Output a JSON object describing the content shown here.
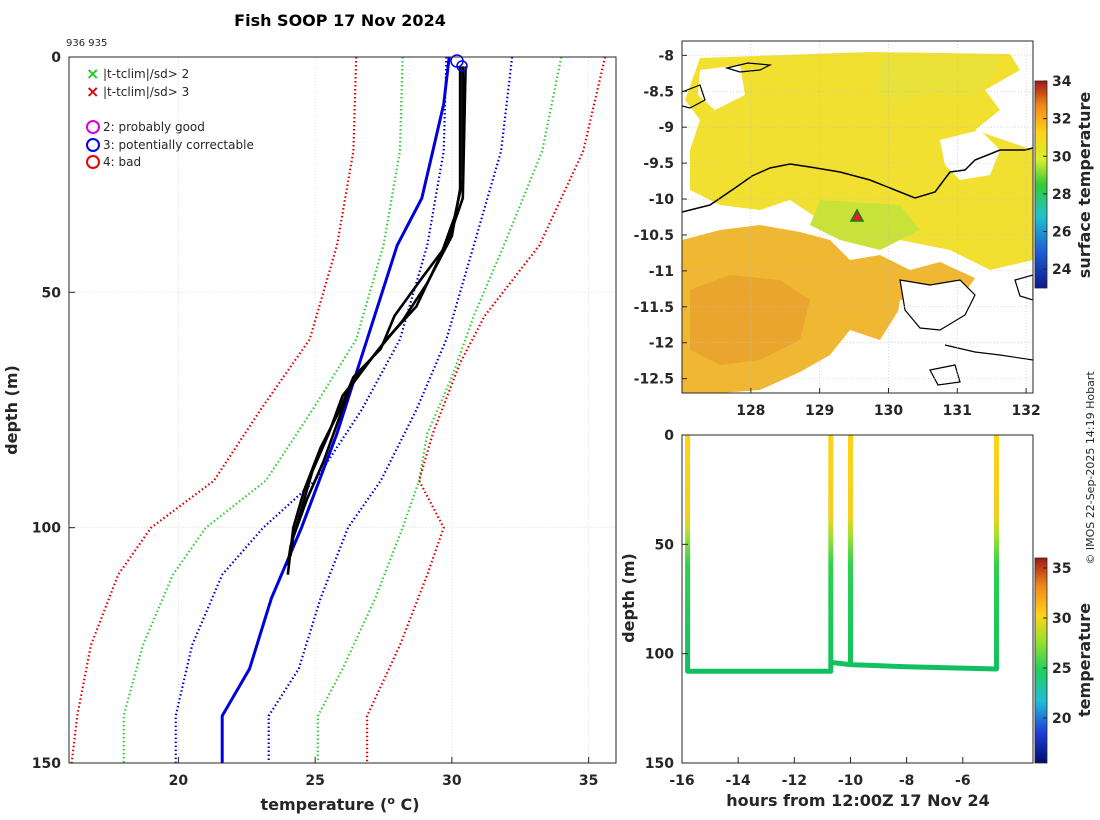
{
  "figure": {
    "title": "Fish SOOP 17 Nov 2024",
    "ids": "936 935",
    "footer": "© IMOS 22-Sep-2025 14:19 Hobart"
  },
  "legend": {
    "items": [
      {
        "symbol": "×",
        "color": "#22cc22",
        "label": "|t-tclim|/sd> 2"
      },
      {
        "symbol": "×",
        "color": "#dd0000",
        "label": "|t-tclim|/sd> 3"
      },
      {
        "symbol": "○",
        "color": "#dd00dd",
        "label": "2: probably good"
      },
      {
        "symbol": "○",
        "color": "#0000ee",
        "label": "3: potentially correctable"
      },
      {
        "symbol": "○",
        "color": "#ee0000",
        "label": "4: bad"
      }
    ]
  },
  "chart_data": [
    {
      "type": "line",
      "panel": "profile",
      "xlabel": "temperature (o C)",
      "ylabel": "depth (m)",
      "xlim": [
        16,
        36
      ],
      "ylim": [
        150,
        0
      ],
      "xticks": [
        20,
        25,
        30,
        35
      ],
      "yticks": [
        0,
        50,
        100,
        150
      ],
      "series": [
        {
          "name": "clim-3sd-low",
          "color": "#dd0000",
          "style": "dotted",
          "points": [
            [
              26.5,
              0
            ],
            [
              26.4,
              20
            ],
            [
              25.8,
              40
            ],
            [
              24.8,
              60
            ],
            [
              23.0,
              75
            ],
            [
              21.3,
              90
            ],
            [
              19.0,
              100
            ],
            [
              17.8,
              110
            ],
            [
              16.8,
              125
            ],
            [
              16.3,
              140
            ],
            [
              16.1,
              150
            ]
          ]
        },
        {
          "name": "clim-2sd-low",
          "color": "#33cc33",
          "style": "dotted",
          "points": [
            [
              28.2,
              0
            ],
            [
              28.1,
              20
            ],
            [
              27.5,
              40
            ],
            [
              26.5,
              60
            ],
            [
              24.9,
              75
            ],
            [
              23.2,
              90
            ],
            [
              21.0,
              100
            ],
            [
              19.8,
              110
            ],
            [
              18.7,
              125
            ],
            [
              18.0,
              140
            ],
            [
              18.0,
              150
            ]
          ]
        },
        {
          "name": "clim-1sd-low",
          "color": "#0000cc",
          "style": "dotted",
          "points": [
            [
              29.8,
              0
            ],
            [
              29.7,
              20
            ],
            [
              29.1,
              40
            ],
            [
              28.1,
              60
            ],
            [
              26.7,
              75
            ],
            [
              25.0,
              90
            ],
            [
              23.1,
              100
            ],
            [
              21.6,
              110
            ],
            [
              20.5,
              125
            ],
            [
              19.9,
              140
            ],
            [
              19.9,
              150
            ]
          ]
        },
        {
          "name": "climatology-mean",
          "color": "#0000dd",
          "style": "solid",
          "points": [
            [
              29.9,
              0
            ],
            [
              29.7,
              10
            ],
            [
              29.3,
              20
            ],
            [
              28.9,
              30
            ],
            [
              28.0,
              40
            ],
            [
              26.9,
              60
            ],
            [
              25.8,
              80
            ],
            [
              24.5,
              100
            ],
            [
              23.4,
              115
            ],
            [
              22.6,
              130
            ],
            [
              21.6,
              140
            ],
            [
              21.6,
              150
            ]
          ]
        },
        {
          "name": "clim-1sd-high",
          "color": "#0000cc",
          "style": "dotted",
          "points": [
            [
              32.2,
              0
            ],
            [
              31.8,
              20
            ],
            [
              30.8,
              40
            ],
            [
              29.8,
              60
            ],
            [
              28.7,
              75
            ],
            [
              27.4,
              90
            ],
            [
              26.2,
              100
            ],
            [
              25.2,
              115
            ],
            [
              24.4,
              130
            ],
            [
              23.3,
              140
            ],
            [
              23.3,
              150
            ]
          ]
        },
        {
          "name": "clim-2sd-high",
          "color": "#33cc33",
          "style": "dotted",
          "points": [
            [
              34.0,
              0
            ],
            [
              33.3,
              20
            ],
            [
              31.9,
              40
            ],
            [
              30.8,
              55
            ],
            [
              30.0,
              68
            ],
            [
              29.1,
              80
            ],
            [
              28.8,
              90
            ],
            [
              28.2,
              100
            ],
            [
              27.2,
              115
            ],
            [
              26.0,
              130
            ],
            [
              25.1,
              140
            ],
            [
              25.1,
              150
            ]
          ]
        },
        {
          "name": "clim-3sd-high",
          "color": "#dd0000",
          "style": "dotted",
          "points": [
            [
              35.6,
              0
            ],
            [
              34.8,
              20
            ],
            [
              33.2,
              40
            ],
            [
              31.2,
              55
            ],
            [
              30.3,
              65
            ],
            [
              29.3,
              80
            ],
            [
              28.8,
              90
            ],
            [
              29.7,
              100
            ],
            [
              29.1,
              110
            ],
            [
              28.1,
              125
            ],
            [
              26.9,
              140
            ],
            [
              26.9,
              150
            ]
          ]
        },
        {
          "name": "profile-1",
          "color": "#000000",
          "style": "solid",
          "points": [
            [
              30.4,
              2
            ],
            [
              30.4,
              26
            ],
            [
              30.1,
              34
            ],
            [
              29.6,
              42
            ],
            [
              28.7,
              53
            ],
            [
              27.6,
              60
            ],
            [
              26.8,
              66
            ],
            [
              26.0,
              72
            ],
            [
              25.5,
              80
            ],
            [
              24.9,
              88
            ],
            [
              24.5,
              96
            ],
            [
              24.1,
              104
            ],
            [
              24.0,
              108
            ]
          ]
        },
        {
          "name": "profile-2",
          "color": "#000000",
          "style": "solid",
          "points": [
            [
              30.3,
              2
            ],
            [
              30.3,
              28
            ],
            [
              30.0,
              38
            ],
            [
              29.1,
              48
            ],
            [
              28.2,
              56
            ],
            [
              27.2,
              63
            ],
            [
              26.3,
              70
            ],
            [
              25.8,
              78
            ],
            [
              25.3,
              86
            ],
            [
              24.7,
              94
            ],
            [
              24.2,
              102
            ],
            [
              24.1,
              106
            ]
          ]
        },
        {
          "name": "profile-3",
          "color": "#000000",
          "style": "solid",
          "points": [
            [
              30.5,
              2
            ],
            [
              30.4,
              30
            ],
            [
              29.8,
              40
            ],
            [
              28.9,
              47
            ],
            [
              27.9,
              55
            ],
            [
              27.4,
              62
            ],
            [
              26.4,
              68
            ],
            [
              25.9,
              75
            ],
            [
              25.2,
              83
            ],
            [
              24.6,
              92
            ],
            [
              24.2,
              100
            ],
            [
              24.0,
              110
            ]
          ]
        }
      ]
    },
    {
      "type": "heatmap",
      "panel": "map",
      "xlim": [
        127,
        132.1
      ],
      "ylim": [
        -12.7,
        -7.8
      ],
      "xticks": [
        128,
        129,
        130,
        131,
        132
      ],
      "yticks": [
        -8,
        -8.5,
        -9,
        -9.5,
        -10,
        -10.5,
        -11,
        -11.5,
        -12,
        -12.5
      ],
      "colorbar": {
        "label": "surface temperature",
        "range": [
          23,
          34
        ],
        "ticks": [
          24,
          26,
          28,
          30,
          32,
          34
        ]
      },
      "marker": {
        "lon": 129.55,
        "lat": -10.3
      }
    },
    {
      "type": "scatter",
      "panel": "timeseries",
      "xlabel": "hours from 12:00Z 17 Nov 24",
      "ylabel": "depth (m)",
      "xlim": [
        -16,
        -3.5
      ],
      "ylim": [
        150,
        0
      ],
      "xticks": [
        -16,
        -14,
        -12,
        -10,
        -8,
        -6
      ],
      "yticks": [
        0,
        50,
        100,
        150
      ],
      "colorbar": {
        "label": "temperature",
        "range": [
          15.5,
          36
        ],
        "ticks": [
          20,
          25,
          30,
          35
        ]
      },
      "track": [
        [
          -15.8,
          0
        ],
        [
          -15.8,
          108
        ],
        [
          -13,
          108
        ],
        [
          -10.7,
          108
        ],
        [
          -10.7,
          0
        ],
        [
          -10.7,
          104
        ],
        [
          -10,
          105
        ],
        [
          -10,
          0
        ],
        [
          -10,
          105
        ],
        [
          -8,
          106
        ],
        [
          -4.8,
          107
        ],
        [
          -4.8,
          0
        ]
      ]
    }
  ]
}
